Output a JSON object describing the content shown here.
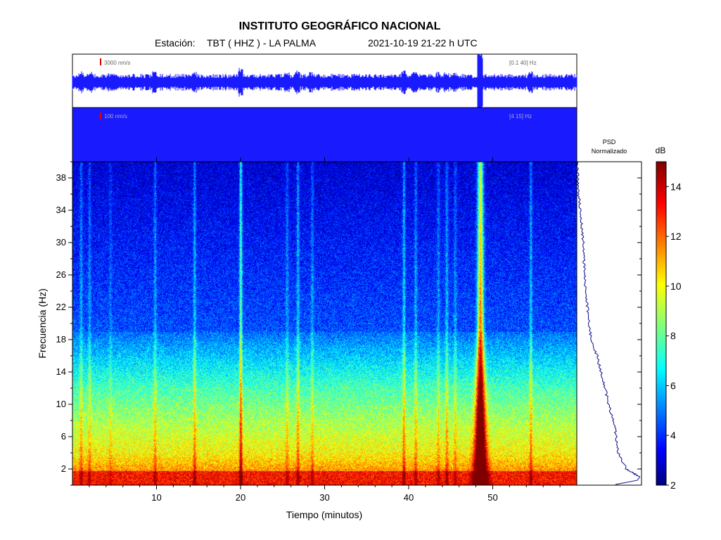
{
  "header": {
    "title": "INSTITUTO GEOGRÁFICO NACIONAL",
    "station_label": "Estación:",
    "station": "TBT ( HHZ ) - LA PALMA",
    "datetime": "2021-10-19  21-22 h UTC"
  },
  "traces": [
    {
      "scale_label": "3000 nm/s",
      "band_label": "[0.1 40] Hz",
      "color": "#1a1aff"
    },
    {
      "scale_label": "100 nm/s",
      "band_label": "[4 15] Hz",
      "color": "#1a1aff"
    }
  ],
  "psd": {
    "title_line1": "PSD",
    "title_line2": "Normalizado",
    "color": "#0a0a8a"
  },
  "colorbar": {
    "unit": "dB",
    "min": 2,
    "max": 15,
    "ticks": [
      2,
      4,
      6,
      8,
      10,
      12,
      14
    ],
    "tick_labels": [
      "2",
      "4",
      "6",
      "8",
      "10",
      "12",
      "14"
    ]
  },
  "chart_data": {
    "type": "heatmap",
    "title": "INSTITUTO GEOGRÁFICO NACIONAL",
    "xlabel": "Tiempo (minutos)",
    "ylabel": "Frecuencia (Hz)",
    "xlim": [
      0,
      60
    ],
    "ylim": [
      0,
      40
    ],
    "xticks": [
      10,
      20,
      30,
      40,
      50
    ],
    "xtick_labels": [
      "10",
      "20",
      "30",
      "40",
      "50"
    ],
    "yticks": [
      2,
      6,
      10,
      14,
      18,
      22,
      26,
      30,
      34,
      38
    ],
    "ytick_labels": [
      "2",
      "6",
      "10",
      "14",
      "18",
      "22",
      "26",
      "30",
      "34",
      "38"
    ],
    "events": [
      {
        "t": 1.0,
        "strength": 0.35
      },
      {
        "t": 2.0,
        "strength": 0.3
      },
      {
        "t": 4.5,
        "strength": 0.2
      },
      {
        "t": 9.8,
        "strength": 0.35
      },
      {
        "t": 14.5,
        "strength": 0.45
      },
      {
        "t": 20.0,
        "strength": 0.85
      },
      {
        "t": 25.5,
        "strength": 0.3
      },
      {
        "t": 26.8,
        "strength": 0.45
      },
      {
        "t": 28.5,
        "strength": 0.3
      },
      {
        "t": 39.4,
        "strength": 0.5
      },
      {
        "t": 40.8,
        "strength": 0.35
      },
      {
        "t": 43.5,
        "strength": 0.3
      },
      {
        "t": 44.5,
        "strength": 0.4
      },
      {
        "t": 45.5,
        "strength": 0.3
      },
      {
        "t": 48.5,
        "strength": 1.0
      },
      {
        "t": 54.5,
        "strength": 0.45
      }
    ],
    "psd_profile": {
      "freq": [
        1,
        2,
        4,
        6,
        8,
        10,
        12,
        14,
        16,
        18,
        20,
        22,
        24,
        26,
        28,
        30,
        32,
        34,
        36,
        38,
        40
      ],
      "value": [
        1.0,
        0.78,
        0.65,
        0.62,
        0.58,
        0.5,
        0.45,
        0.38,
        0.32,
        0.22,
        0.2,
        0.17,
        0.14,
        0.13,
        0.11,
        0.1,
        0.08,
        0.05,
        0.03,
        0.02,
        0.0
      ]
    }
  }
}
